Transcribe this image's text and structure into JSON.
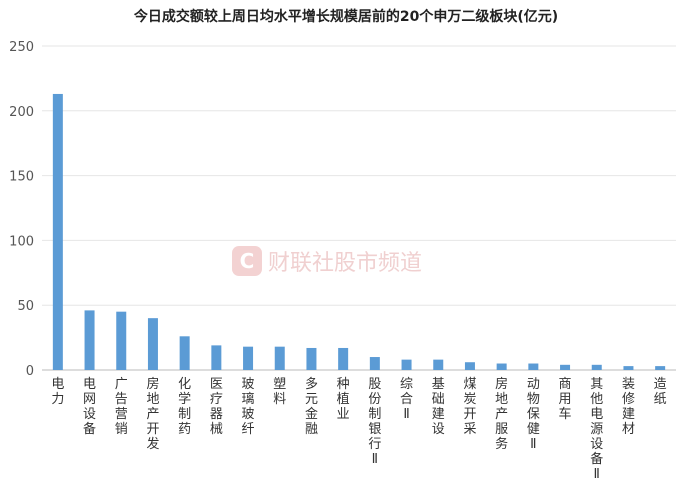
{
  "watermark": {
    "logo_letter": "C",
    "text": "财联社股市频道"
  },
  "chart_data": {
    "type": "bar",
    "title": "今日成交额较上周日均水平增长规模居前的20个申万二级板块(亿元)",
    "xlabel": "",
    "ylabel": "",
    "ylim": [
      0,
      250
    ],
    "yticks": [
      0,
      50,
      100,
      150,
      200,
      250
    ],
    "grid": true,
    "legend": "none",
    "bar_color": "#5b9bd5",
    "categories": [
      "电力",
      "电网设备",
      "广告营销",
      "房地产开发",
      "化学制药",
      "医疗器械",
      "玻璃玻纤",
      "塑料",
      "多元金融",
      "种植业",
      "股份制银行Ⅱ",
      "综合Ⅱ",
      "基础建设",
      "煤炭开采",
      "房地产服务",
      "动物保健Ⅱ",
      "商用车",
      "其他电源设备Ⅱ",
      "装修建材",
      "造纸"
    ],
    "values": [
      213,
      46,
      45,
      40,
      26,
      19,
      18,
      18,
      17,
      17,
      10,
      8,
      8,
      6,
      5,
      5,
      4,
      4,
      3,
      3
    ]
  }
}
